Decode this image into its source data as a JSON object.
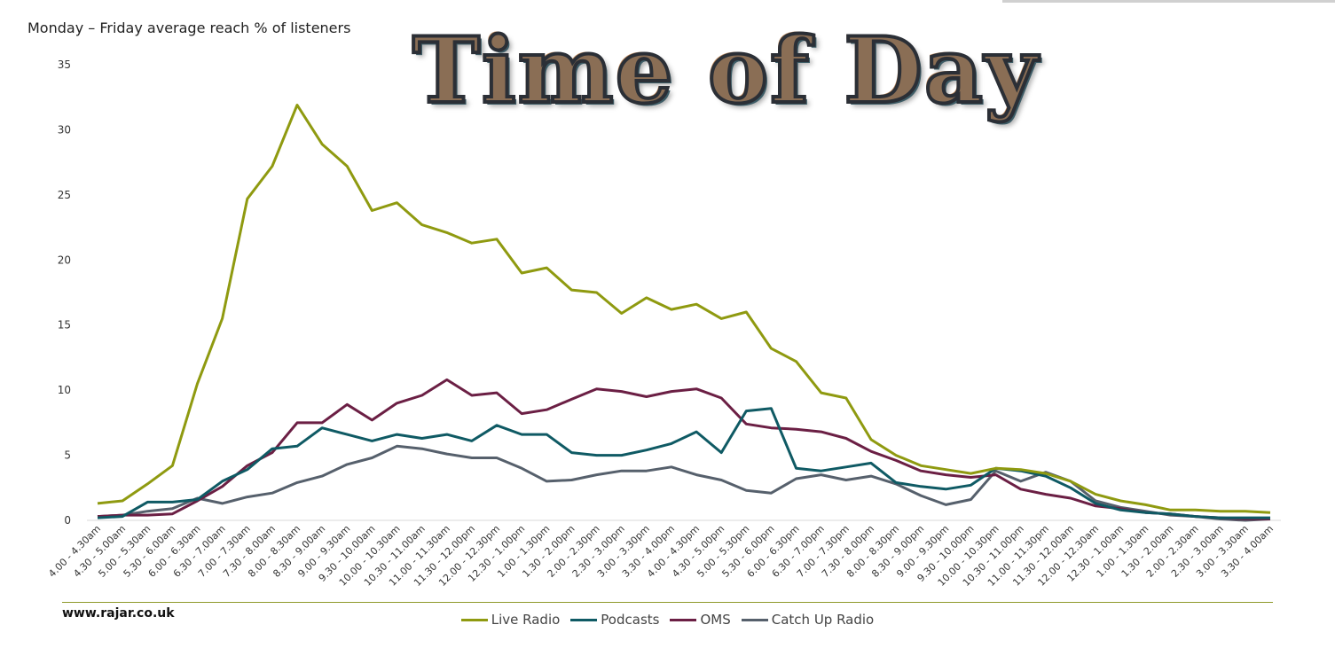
{
  "header": {
    "subtitle": "Monday – Friday average reach % of listeners",
    "title": "Time of Day"
  },
  "footer": {
    "source": "www.rajar.co.uk"
  },
  "chart_data": {
    "type": "line",
    "title": "Time of Day",
    "subtitle": "Monday – Friday average reach % of listeners",
    "ylim": [
      0,
      35
    ],
    "yticks": [
      0,
      5,
      10,
      15,
      20,
      25,
      30,
      35
    ],
    "grid": false,
    "legend_position": "bottom",
    "categories": [
      "4.00 - 4.30am",
      "4.30 - 5.00am",
      "5.00 - 5.30am",
      "5.30 - 6.00am",
      "6.00 - 6.30am",
      "6.30 - 7.00am",
      "7.00 - 7.30am",
      "7.30 - 8.00am",
      "8.00 - 8.30am",
      "8.30 - 9.00am",
      "9.00 - 9.30am",
      "9.30 - 10.00am",
      "10.00 - 10.30am",
      "10.30 - 11.00am",
      "11.00 - 11.30am",
      "11.30 - 12.00pm",
      "12.00 - 12.30pm",
      "12.30 - 1.00pm",
      "1.00 - 1.30pm",
      "1.30 - 2.00pm",
      "2.00 - 2.30pm",
      "2.30 - 3.00pm",
      "3.00 - 3.30pm",
      "3.30 - 4.00pm",
      "4.00 - 4.30pm",
      "4.30 - 5.00pm",
      "5.00 - 5.30pm",
      "5.30 - 6.00pm",
      "6.00 - 6.30pm",
      "6.30 - 7.00pm",
      "7.00 - 7.30pm",
      "7.30 - 8.00pm",
      "8.00 - 8.30pm",
      "8.30 - 9.00pm",
      "9.00 - 9.30pm",
      "9.30 - 10.00pm",
      "10.00 - 10.30pm",
      "10.30 - 11.00pm",
      "11.00 - 11.30pm",
      "11.30 - 12.00am",
      "12.00 - 12.30am",
      "12.30 - 1.00am",
      "1.00 - 1.30am",
      "1.30 - 2.00am",
      "2.00 - 2.30am",
      "2.30 - 3.00am",
      "3.00 - 3.30am",
      "3.30 - 4.00am"
    ],
    "series": [
      {
        "name": "Live Radio",
        "color": "#8f9a10",
        "values": [
          1.3,
          1.5,
          2.8,
          4.2,
          10.5,
          15.5,
          24.7,
          27.2,
          31.9,
          28.9,
          27.2,
          23.8,
          24.4,
          22.7,
          22.1,
          21.3,
          21.6,
          19.0,
          19.4,
          17.7,
          17.5,
          15.9,
          17.1,
          16.2,
          16.6,
          15.5,
          16.0,
          13.2,
          12.2,
          9.8,
          9.4,
          6.2,
          5.0,
          4.2,
          3.9,
          3.6,
          4.0,
          3.9,
          3.6,
          3.0,
          2.0,
          1.5,
          1.2,
          0.8,
          0.8,
          0.7,
          0.7,
          0.6
        ]
      },
      {
        "name": "Podcasts",
        "color": "#0f5a64",
        "values": [
          0.2,
          0.3,
          1.4,
          1.4,
          1.6,
          3.0,
          3.9,
          5.5,
          5.7,
          7.1,
          6.6,
          6.1,
          6.6,
          6.3,
          6.6,
          6.1,
          7.3,
          6.6,
          6.6,
          5.2,
          5.0,
          5.0,
          5.4,
          5.9,
          6.8,
          5.2,
          8.4,
          8.6,
          4.0,
          3.8,
          4.1,
          4.4,
          2.9,
          2.6,
          2.4,
          2.7,
          4.0,
          3.8,
          3.4,
          2.5,
          1.3,
          0.8,
          0.6,
          0.5,
          0.3,
          0.2,
          0.2,
          0.2
        ]
      },
      {
        "name": "OMS",
        "color": "#6b1f44",
        "values": [
          0.3,
          0.4,
          0.4,
          0.5,
          1.5,
          2.6,
          4.2,
          5.2,
          7.5,
          7.5,
          8.9,
          7.7,
          9.0,
          9.6,
          10.8,
          9.6,
          9.8,
          8.2,
          8.5,
          9.3,
          10.1,
          9.9,
          9.5,
          9.9,
          10.1,
          9.4,
          7.4,
          7.1,
          7.0,
          6.8,
          6.3,
          5.3,
          4.6,
          3.8,
          3.5,
          3.3,
          3.5,
          2.4,
          2.0,
          1.7,
          1.1,
          0.9,
          0.6,
          0.5,
          0.3,
          0.2,
          0.1,
          0.1
        ]
      },
      {
        "name": "Catch Up Radio",
        "color": "#56606c",
        "values": [
          0.3,
          0.4,
          0.7,
          0.9,
          1.7,
          1.3,
          1.8,
          2.1,
          2.9,
          3.4,
          4.3,
          4.8,
          5.7,
          5.5,
          5.1,
          4.8,
          4.8,
          4.0,
          3.0,
          3.1,
          3.5,
          3.8,
          3.8,
          4.1,
          3.5,
          3.1,
          2.3,
          2.1,
          3.2,
          3.5,
          3.1,
          3.4,
          2.8,
          1.9,
          1.2,
          1.6,
          3.8,
          3.0,
          3.7,
          3.0,
          1.5,
          1.0,
          0.7,
          0.4,
          0.3,
          0.1,
          0.0,
          0.1
        ]
      }
    ]
  }
}
